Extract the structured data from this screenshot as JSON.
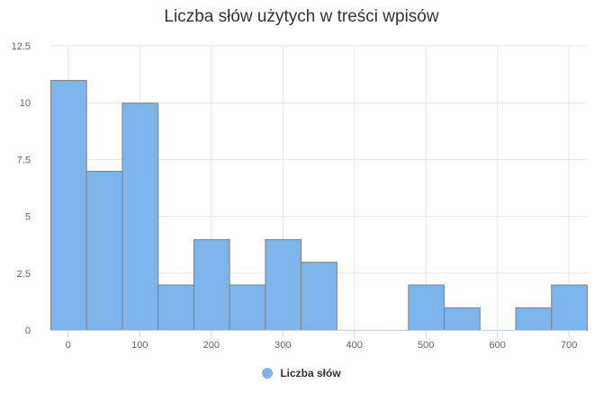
{
  "chart_data": {
    "type": "bar",
    "title": "Liczba słów użytych w treści wpisów",
    "xlabel": "",
    "ylabel": "",
    "xlim": [
      -25,
      725
    ],
    "ylim": [
      0,
      12.5
    ],
    "bin_width": 50,
    "bin_starts": [
      -25,
      25,
      75,
      125,
      175,
      225,
      275,
      325,
      375,
      425,
      475,
      525,
      575,
      625,
      675
    ],
    "series": [
      {
        "name": "Liczba słów",
        "values": [
          11,
          7,
          10,
          2,
          4,
          2,
          4,
          3,
          0,
          0,
          2,
          1,
          0,
          1,
          2
        ]
      }
    ],
    "x_ticks": [
      0,
      100,
      200,
      300,
      400,
      500,
      600,
      700
    ],
    "x_tick_labels": [
      "0",
      "100",
      "200",
      "300",
      "400",
      "500",
      "600",
      "700"
    ],
    "y_ticks": [
      0,
      2.5,
      5,
      7.5,
      10,
      12.5
    ],
    "y_tick_labels": [
      "0",
      "2.5",
      "5",
      "7.5",
      "10",
      "12.5"
    ],
    "grid": true,
    "legend_position": "bottom-center",
    "colors": {
      "bar_fill": "#7cb5ec",
      "bar_stroke": "#808080",
      "grid": "#e6e6e6",
      "axis": "#ccd6eb"
    }
  }
}
